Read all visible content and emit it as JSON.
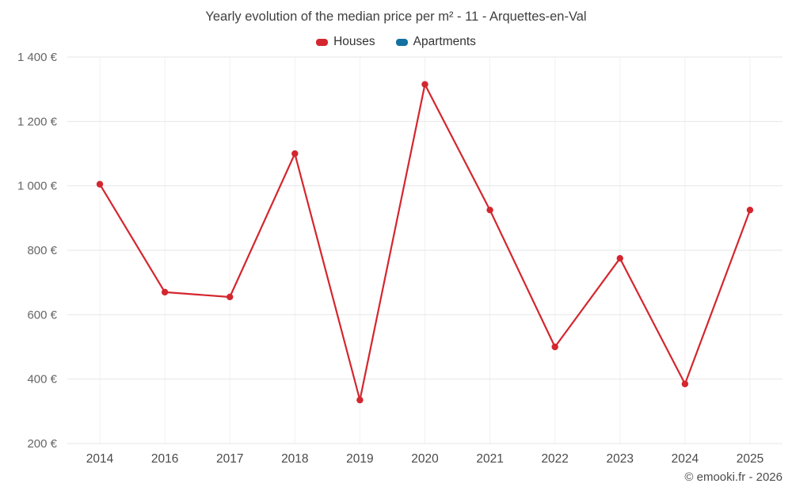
{
  "chart_data": {
    "type": "line",
    "title": "Yearly evolution of the median price per m² - 11 - Arquettes-en-Val",
    "xlabel": "",
    "ylabel": "",
    "categories": [
      "2014",
      "2016",
      "2017",
      "2018",
      "2019",
      "2020",
      "2021",
      "2022",
      "2023",
      "2024",
      "2025"
    ],
    "series": [
      {
        "name": "Houses",
        "color": "#d4262e",
        "values": [
          1005,
          670,
          655,
          1100,
          335,
          1315,
          925,
          500,
          775,
          385,
          925
        ]
      },
      {
        "name": "Apartments",
        "color": "#1271a0",
        "values": []
      }
    ],
    "ylim": [
      200,
      1400
    ],
    "y_ticks": [
      {
        "value": 200,
        "label": "200 €"
      },
      {
        "value": 400,
        "label": "400 €"
      },
      {
        "value": 600,
        "label": "600 €"
      },
      {
        "value": 800,
        "label": "800 €"
      },
      {
        "value": 1000,
        "label": "1 000 €"
      },
      {
        "value": 1200,
        "label": "1 200 €"
      },
      {
        "value": 1400,
        "label": "1 400 €"
      }
    ],
    "grid": true,
    "legend_position": "top"
  },
  "footer": {
    "credit": "© emooki.fr - 2026"
  }
}
